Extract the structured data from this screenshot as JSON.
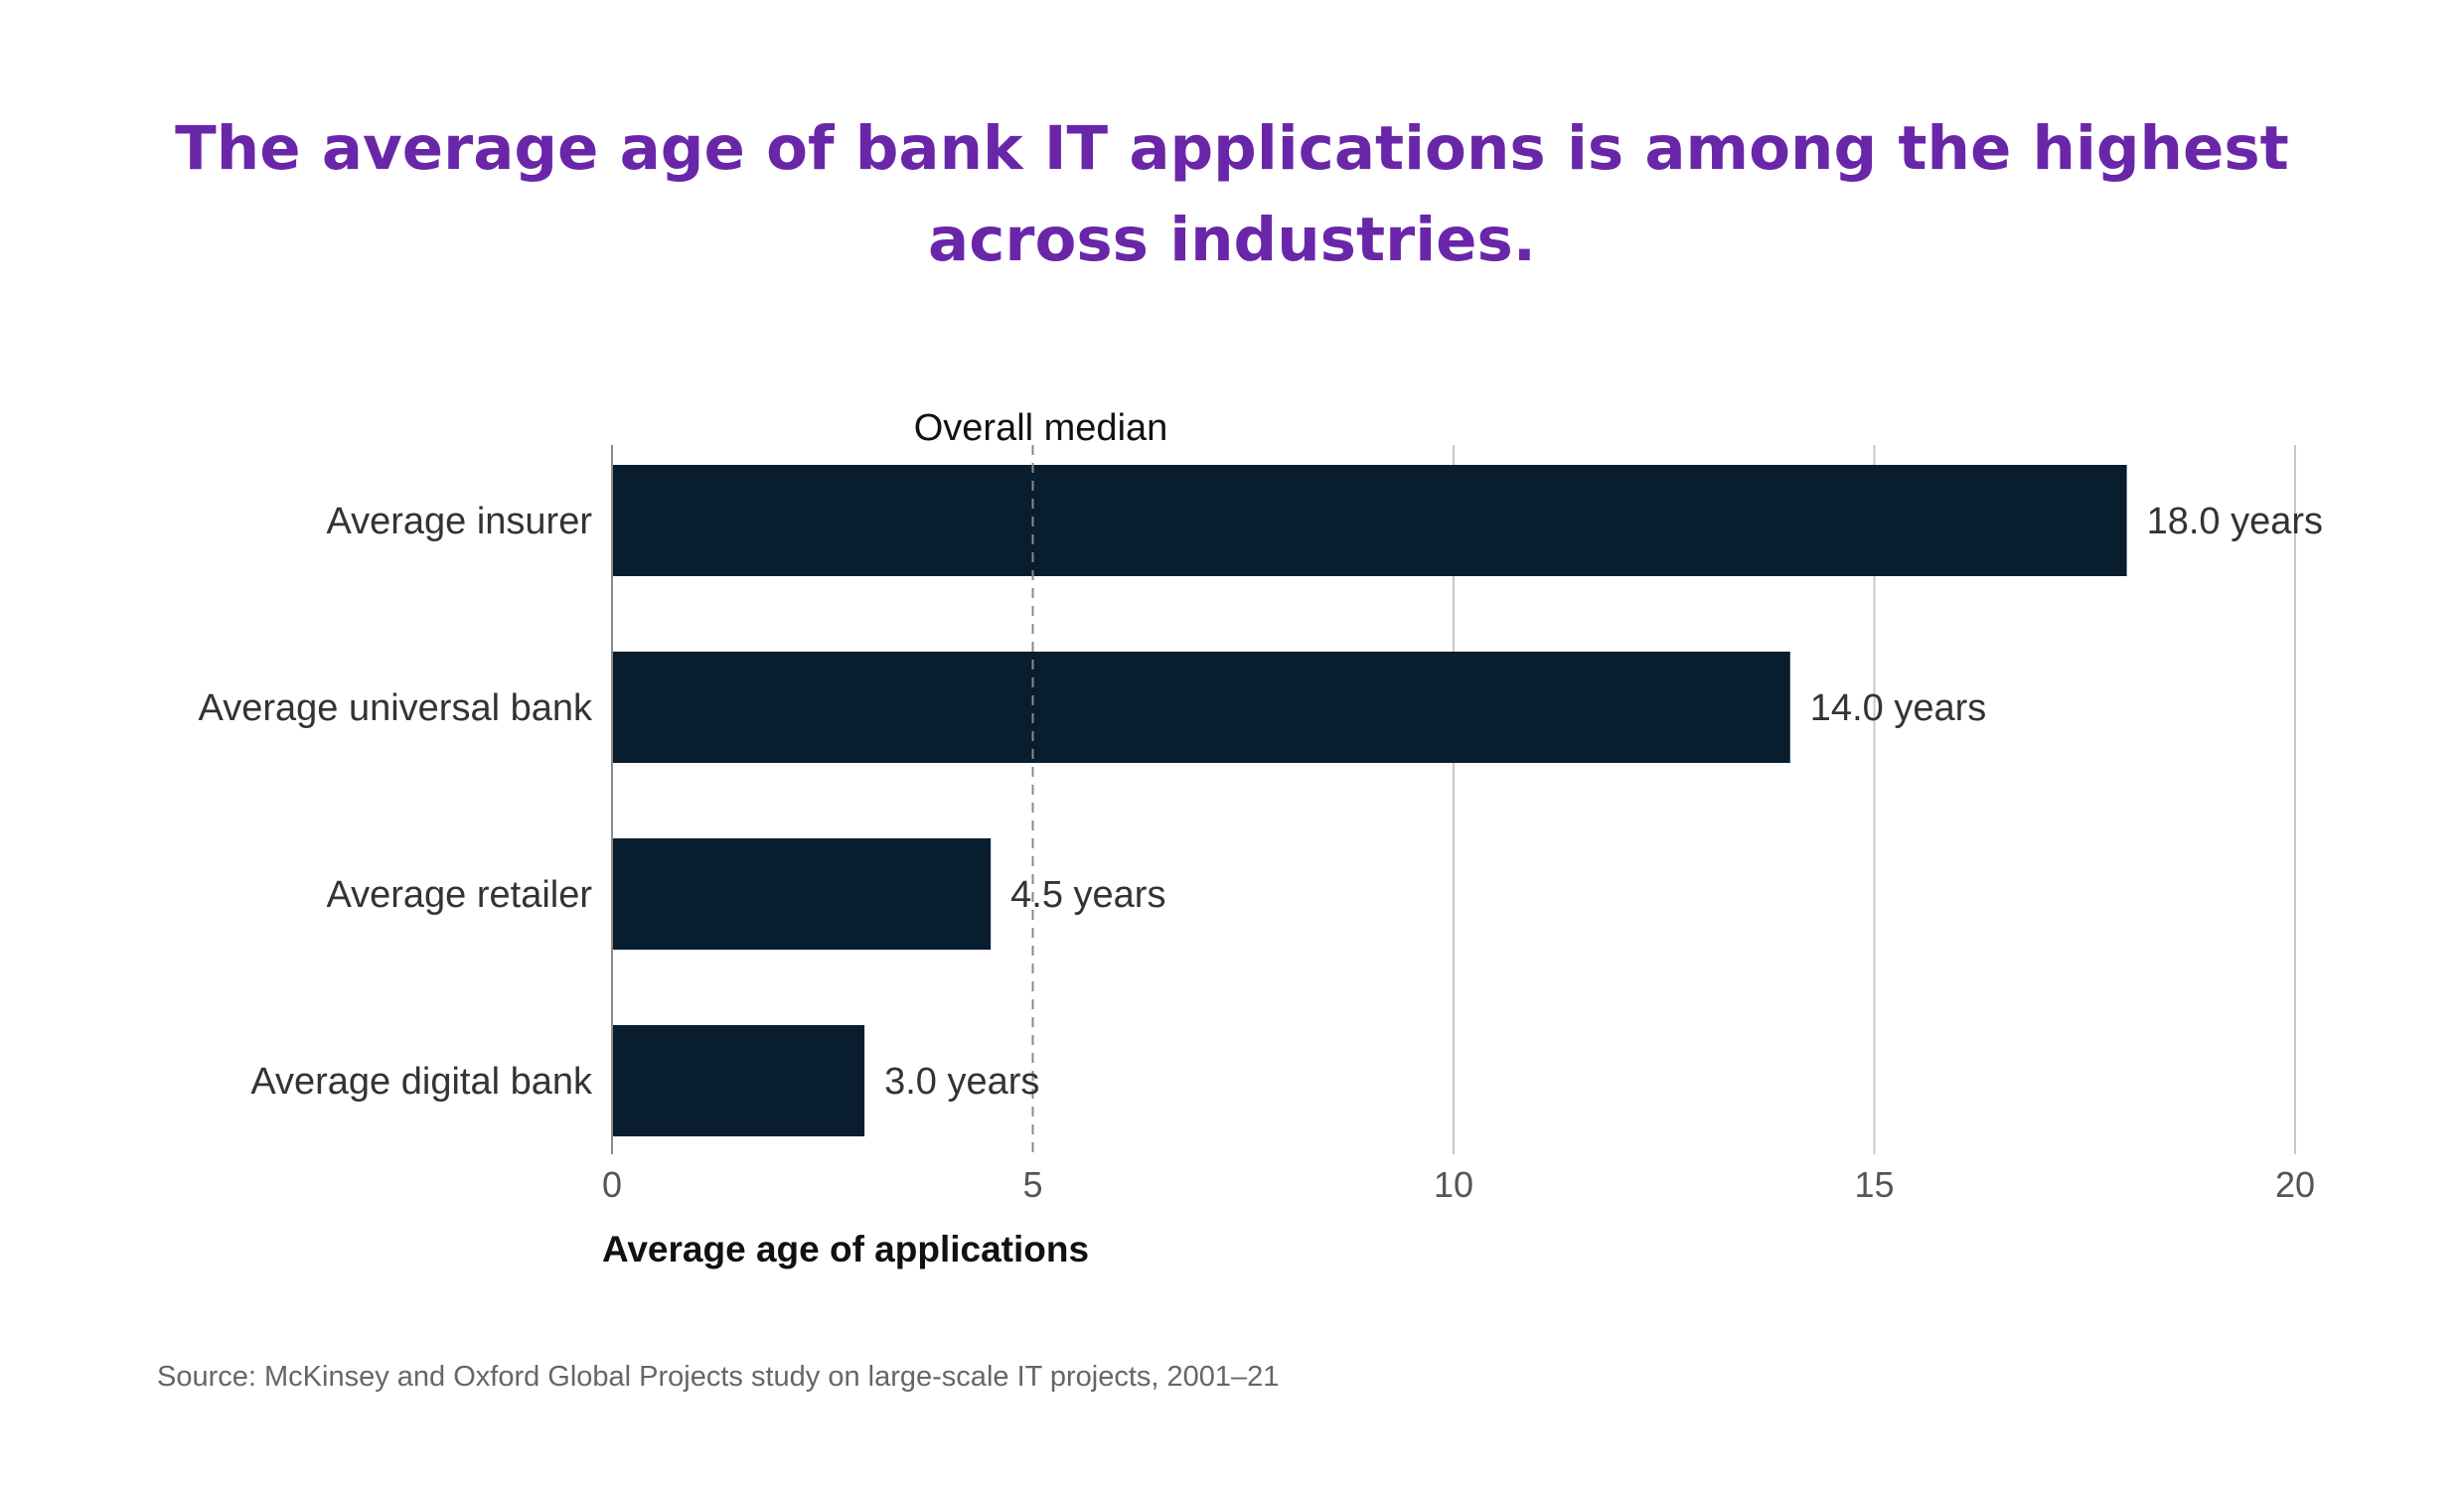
{
  "chart_data": {
    "type": "bar",
    "orientation": "horizontal",
    "title_lines": [
      "The average age of bank IT applications is among the highest",
      "across industries."
    ],
    "categories": [
      "Average insurer",
      "Average universal bank",
      "Average retailer",
      "Average digital bank"
    ],
    "values": [
      18.0,
      14.0,
      4.5,
      3.0
    ],
    "value_labels": [
      "18.0 years",
      "14.0 years",
      "4.5 years",
      "3.0 years"
    ],
    "xlabel": "Average age of applications",
    "xlim": [
      0,
      20
    ],
    "xticks": [
      0,
      5,
      10,
      15,
      20
    ],
    "xtick_labels": [
      "0",
      "5",
      "10",
      "15",
      "20"
    ],
    "grid": true,
    "reference_line": {
      "value": 5,
      "label": "Overall median",
      "style": "dashed"
    },
    "bar_color": "#081d2e",
    "title_color": "#6a26a8"
  },
  "source": "Source: McKinsey and Oxford Global Projects study on large-scale IT projects, 2001–21"
}
